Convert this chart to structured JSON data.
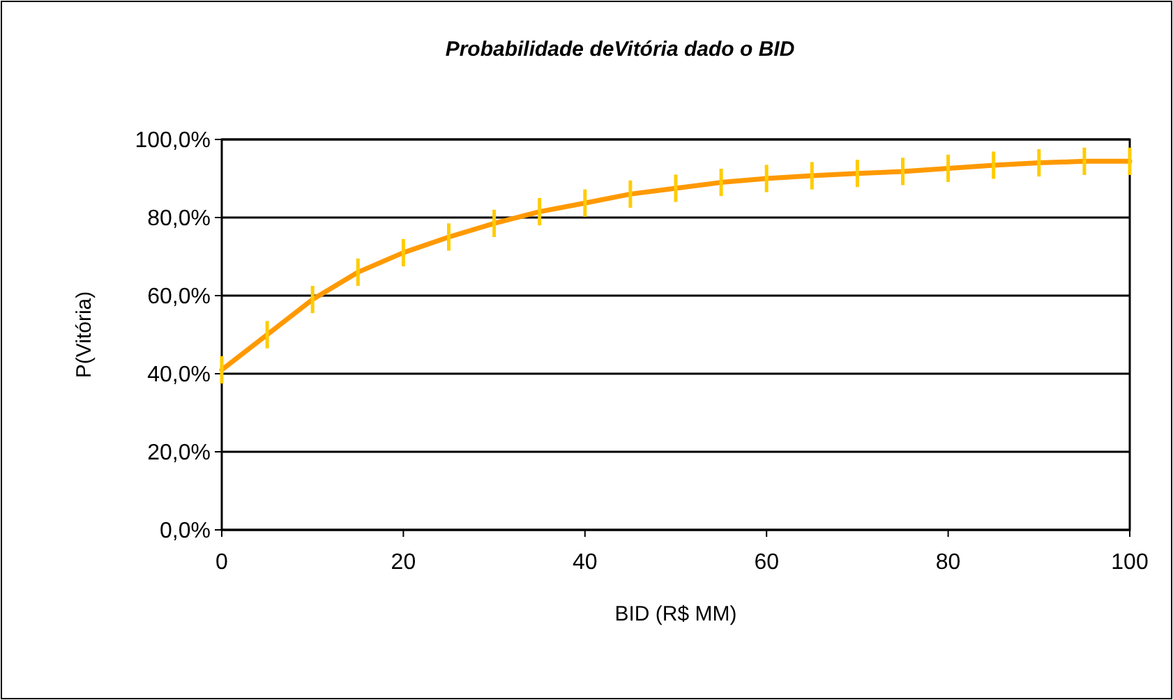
{
  "chart_data": {
    "type": "line",
    "title": "Probabilidade deVitória dado o BID",
    "xlabel": "BID (R$ MM)",
    "ylabel": "P(Vitória)",
    "x": [
      0,
      5,
      10,
      15,
      20,
      25,
      30,
      35,
      40,
      45,
      50,
      55,
      60,
      65,
      70,
      75,
      80,
      85,
      90,
      95,
      100
    ],
    "series": [
      {
        "color": "#ff9900",
        "values": [
          41,
          50,
          59,
          66,
          71,
          75,
          78.5,
          81.5,
          83.7,
          86,
          87.5,
          89,
          90,
          90.7,
          91.3,
          91.8,
          92.6,
          93.4,
          94,
          94.4,
          94.4
        ],
        "errors": [
          3.5,
          3.5,
          3.5,
          3.5,
          3.5,
          3.5,
          3.5,
          3.5,
          3.5,
          3.5,
          3.5,
          3.5,
          3.5,
          3.5,
          3.5,
          3.5,
          3.5,
          3.5,
          3.5,
          3.5,
          3.5
        ]
      }
    ],
    "xlim": [
      0,
      100
    ],
    "xticks": [
      0,
      20,
      40,
      60,
      80,
      100
    ],
    "ylim": [
      0,
      100
    ],
    "yticks": [
      {
        "value": 0,
        "label": "0,0%"
      },
      {
        "value": 20,
        "label": "20,0%"
      },
      {
        "value": 40,
        "label": "40,0%"
      },
      {
        "value": 60,
        "label": "60,0%"
      },
      {
        "value": 80,
        "label": "80,0%"
      },
      {
        "value": 100,
        "label": "100,0%"
      }
    ],
    "grid": "y",
    "marker": "none",
    "line_style": "solid"
  }
}
